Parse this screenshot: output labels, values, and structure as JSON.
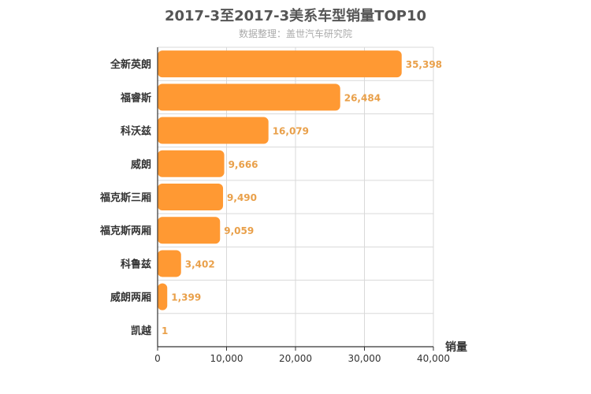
{
  "chart_data": {
    "type": "bar",
    "orientation": "horizontal",
    "title": "2017-3至2017-3美系车型销量TOP10",
    "subtitle": "数据整理：盖世汽车研究院",
    "xlabel": "销量",
    "ylabel": "",
    "categories": [
      "全新英朗",
      "福睿斯",
      "科沃兹",
      "威朗",
      "福克斯三厢",
      "福克斯两厢",
      "科鲁兹",
      "威朗两厢",
      "凯越"
    ],
    "values": [
      35398,
      26484,
      16079,
      9666,
      9490,
      9059,
      3402,
      1399,
      1
    ],
    "value_labels": [
      "35,398",
      "26,484",
      "16,079",
      "9,666",
      "9,490",
      "9,059",
      "3,402",
      "1,399",
      "1"
    ],
    "xlim": [
      0,
      40000
    ],
    "xticks": [
      0,
      10000,
      20000,
      30000,
      40000
    ],
    "xtick_labels": [
      "0",
      "10,000",
      "20,000",
      "30,000",
      "40,000"
    ],
    "grid": true,
    "legend": "none",
    "colors": {
      "bar": "#ff9933",
      "value_label": "#e9a04a",
      "grid": "#d9d9d9",
      "axis": "#333333",
      "title": "#555555",
      "subtitle": "#aaaaaa"
    }
  }
}
